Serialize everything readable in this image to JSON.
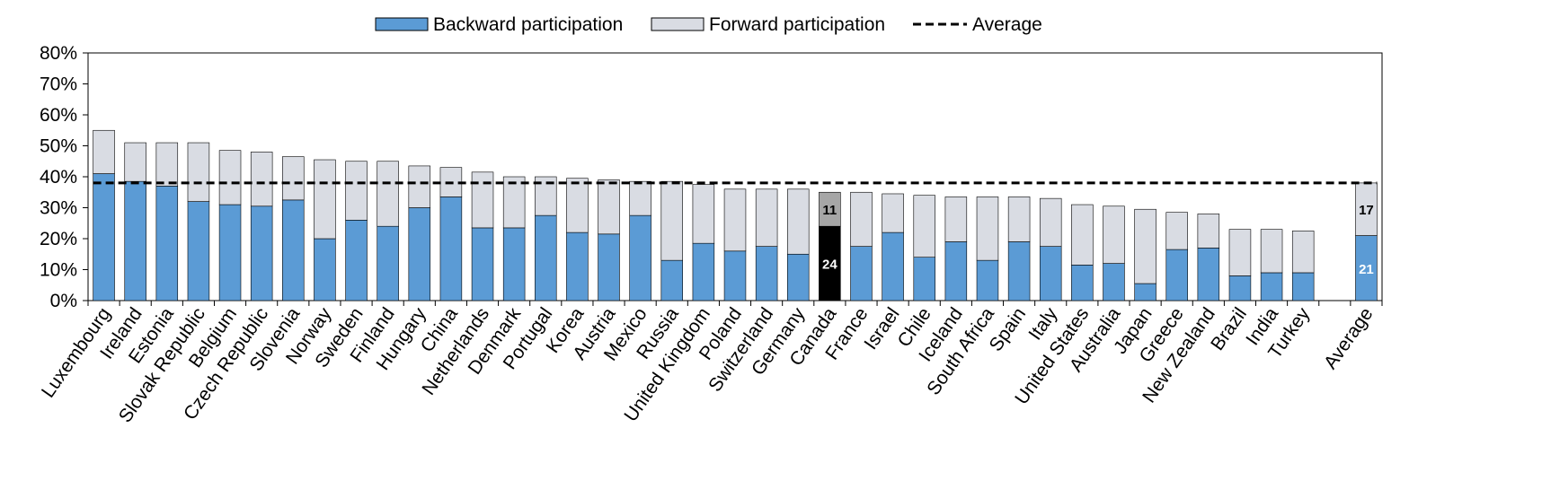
{
  "chart_data": {
    "type": "bar",
    "stacked": true,
    "categories": [
      "Luxembourg",
      "Ireland",
      "Estonia",
      "Slovak Republic",
      "Belgium",
      "Czech Republic",
      "Slovenia",
      "Norway",
      "Sweden",
      "Finland",
      "Hungary",
      "China",
      "Netherlands",
      "Denmark",
      "Portugal",
      "Korea",
      "Austria",
      "Mexico",
      "Russia",
      "United Kingdom",
      "Poland",
      "Switzerland",
      "Germany",
      "Canada",
      "France",
      "Israel",
      "Chile",
      "Iceland",
      "South Africa",
      "Spain",
      "Italy",
      "United States",
      "Australia",
      "Japan",
      "Greece",
      "New Zealand",
      "Brazil",
      "India",
      "Turkey",
      "",
      "Average"
    ],
    "series": [
      {
        "name": "Backward participation",
        "color": "#5b9bd5",
        "values": [
          41,
          38.5,
          37,
          32,
          31,
          30.5,
          32.5,
          20,
          26,
          24,
          30,
          33.5,
          23.5,
          23.5,
          27.5,
          22,
          21.5,
          27.5,
          13,
          18.5,
          16,
          17.5,
          15,
          24,
          17.5,
          22,
          14,
          19,
          13,
          19,
          17.5,
          11.5,
          12,
          5.5,
          16.5,
          17,
          8,
          9,
          9,
          null,
          21
        ]
      },
      {
        "name": "Forward participation",
        "color": "#d9dce3",
        "values": [
          14,
          12.5,
          14,
          19,
          17.5,
          17.5,
          14,
          25.5,
          19,
          21,
          13.5,
          9.5,
          18,
          16.5,
          12.5,
          17.5,
          17.5,
          11,
          25.5,
          19,
          20,
          18.5,
          21,
          11,
          17.5,
          12.5,
          20,
          14.5,
          20.5,
          14.5,
          15.5,
          19.5,
          18.5,
          24,
          12,
          11,
          15,
          14,
          13.5,
          null,
          17
        ]
      }
    ],
    "average": 38,
    "highlight": {
      "category": "Canada",
      "backward_color": "#000000",
      "forward_color": "#a6a6a6"
    },
    "data_labels": [
      {
        "category": "Canada",
        "series": "Forward participation",
        "text": "11"
      },
      {
        "category": "Canada",
        "series": "Backward participation",
        "text": "24"
      },
      {
        "category": "Average",
        "series": "Forward participation",
        "text": "17"
      },
      {
        "category": "Average",
        "series": "Backward participation",
        "text": "21"
      }
    ],
    "ylim": [
      0,
      80
    ],
    "yticks": [
      "0%",
      "10%",
      "20%",
      "30%",
      "40%",
      "50%",
      "60%",
      "70%",
      "80%"
    ],
    "legend": {
      "position": "top",
      "items": [
        {
          "label": "Backward participation",
          "kind": "bar"
        },
        {
          "label": "Forward participation",
          "kind": "bar"
        },
        {
          "label": "Average",
          "kind": "dashed-line"
        }
      ]
    },
    "grid": false
  }
}
